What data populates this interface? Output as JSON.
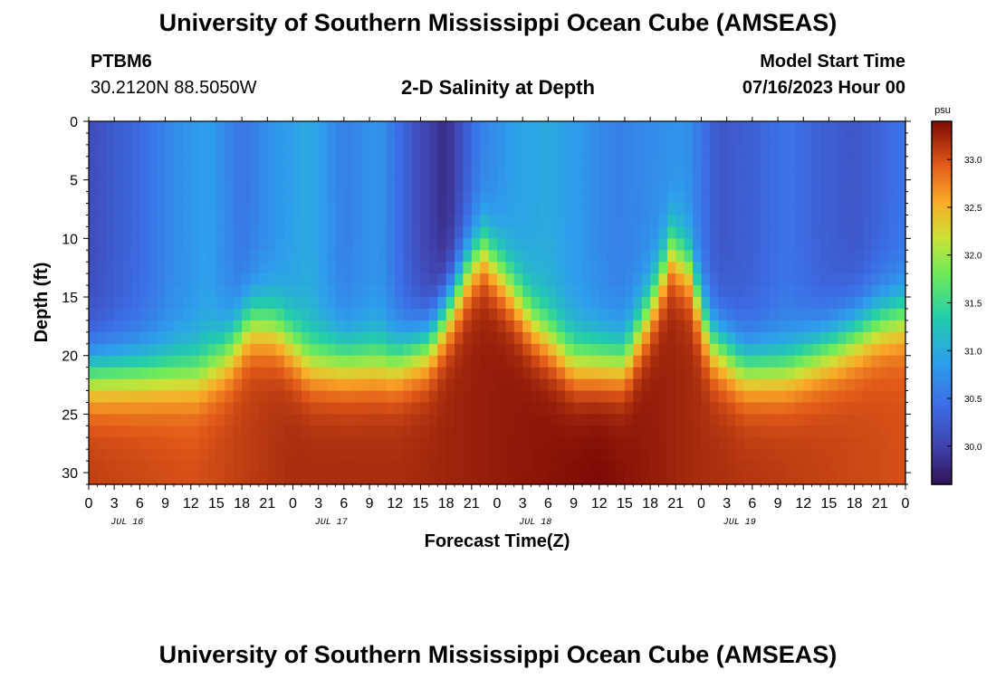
{
  "header": {
    "title": "University of Southern Mississippi Ocean Cube (AMSEAS)",
    "station_id": "PTBM6",
    "coordinates": "30.2120N  88.5050W",
    "chart_title": "2-D Salinity at Depth",
    "model_start_label": "Model Start Time",
    "model_start_value": "07/16/2023 Hour 00"
  },
  "footer": {
    "title": "University of Southern Mississippi Ocean Cube (AMSEAS)"
  },
  "chart_data": {
    "type": "heatmap",
    "title": "2-D Salinity at Depth",
    "xlabel": "Forecast Time(Z)",
    "ylabel": "Depth (ft)",
    "x_range_hours": [
      0,
      96
    ],
    "ylim": [
      0,
      31
    ],
    "x_tick_labels": [
      "0",
      "3",
      "6",
      "9",
      "12",
      "15",
      "18",
      "21",
      "0",
      "3",
      "6",
      "9",
      "12",
      "15",
      "18",
      "21",
      "0",
      "3",
      "6",
      "9",
      "12",
      "15",
      "18",
      "21",
      "0",
      "3",
      "6",
      "9",
      "12",
      "15",
      "18",
      "21",
      "0"
    ],
    "day_labels": [
      "JUL 16",
      "JUL 17",
      "JUL 18",
      "JUL 19"
    ],
    "y_ticks": [
      0,
      5,
      10,
      15,
      20,
      25,
      30
    ],
    "colorbar": {
      "unit": "psu",
      "range": [
        29.6,
        33.4
      ],
      "ticks": [
        30.0,
        30.5,
        31.0,
        31.5,
        32.0,
        32.5,
        33.0
      ],
      "tick_labels": [
        "30.0",
        "30.5",
        "31.0",
        "31.5",
        "32.0",
        "32.5",
        "33.0"
      ]
    },
    "halocline_depth_ft": [
      {
        "hour": 0,
        "depth": 21.5
      },
      {
        "hour": 8,
        "depth": 21.5
      },
      {
        "hour": 13,
        "depth": 21.5
      },
      {
        "hour": 16,
        "depth": 20
      },
      {
        "hour": 19,
        "depth": 17
      },
      {
        "hour": 22,
        "depth": 17.5
      },
      {
        "hour": 26,
        "depth": 20.5
      },
      {
        "hour": 31,
        "depth": 20.5
      },
      {
        "hour": 36,
        "depth": 20.5
      },
      {
        "hour": 40,
        "depth": 19
      },
      {
        "hour": 43,
        "depth": 15
      },
      {
        "hour": 45,
        "depth": 12
      },
      {
        "hour": 46.5,
        "depth": 11
      },
      {
        "hour": 49,
        "depth": 13.5
      },
      {
        "hour": 52,
        "depth": 17
      },
      {
        "hour": 57,
        "depth": 20.5
      },
      {
        "hour": 63,
        "depth": 20.5
      },
      {
        "hour": 66,
        "depth": 16
      },
      {
        "hour": 68.5,
        "depth": 11
      },
      {
        "hour": 70.5,
        "depth": 12.5
      },
      {
        "hour": 73,
        "depth": 18.5
      },
      {
        "hour": 77,
        "depth": 21
      },
      {
        "hour": 82,
        "depth": 21
      },
      {
        "hour": 88,
        "depth": 19
      },
      {
        "hour": 93,
        "depth": 17
      },
      {
        "hour": 96,
        "depth": 16.5
      }
    ],
    "surface_salinity_psu": [
      {
        "hour": 0,
        "value": 30.1
      },
      {
        "hour": 6,
        "value": 30.4
      },
      {
        "hour": 10,
        "value": 30.7
      },
      {
        "hour": 14,
        "value": 30.9
      },
      {
        "hour": 18,
        "value": 30.5
      },
      {
        "hour": 22,
        "value": 30.8
      },
      {
        "hour": 26,
        "value": 31.0
      },
      {
        "hour": 30,
        "value": 30.6
      },
      {
        "hour": 34,
        "value": 30.8
      },
      {
        "hour": 38,
        "value": 30.2
      },
      {
        "hour": 42,
        "value": 29.8
      },
      {
        "hour": 46,
        "value": 30.6
      },
      {
        "hour": 50,
        "value": 30.9
      },
      {
        "hour": 54,
        "value": 31.0
      },
      {
        "hour": 58,
        "value": 30.8
      },
      {
        "hour": 62,
        "value": 30.6
      },
      {
        "hour": 66,
        "value": 30.7
      },
      {
        "hour": 70,
        "value": 30.8
      },
      {
        "hour": 74,
        "value": 30.2
      },
      {
        "hour": 78,
        "value": 30.3
      },
      {
        "hour": 82,
        "value": 30.5
      },
      {
        "hour": 86,
        "value": 30.3
      },
      {
        "hour": 90,
        "value": 30.2
      },
      {
        "hour": 94,
        "value": 30.4
      },
      {
        "hour": 96,
        "value": 30.5
      }
    ],
    "bottom_salinity_psu": [
      {
        "hour": 0,
        "value": 33.1
      },
      {
        "hour": 12,
        "value": 33.0
      },
      {
        "hour": 24,
        "value": 33.2
      },
      {
        "hour": 36,
        "value": 33.2
      },
      {
        "hour": 48,
        "value": 33.3
      },
      {
        "hour": 60,
        "value": 33.4
      },
      {
        "hour": 72,
        "value": 33.2
      },
      {
        "hour": 84,
        "value": 33.1
      },
      {
        "hour": 96,
        "value": 33.0
      }
    ]
  }
}
